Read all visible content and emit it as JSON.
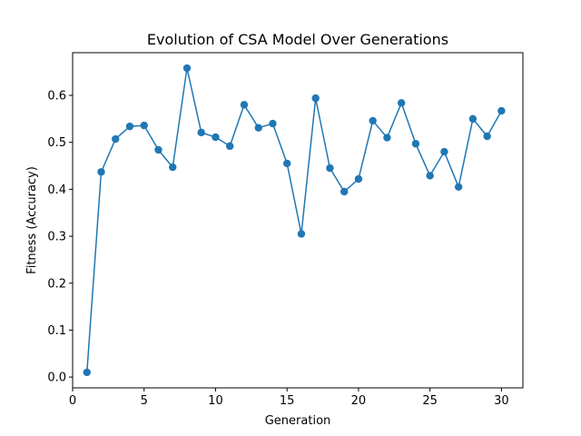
{
  "chart_data": {
    "type": "line",
    "title": "Evolution of CSA Model Over Generations",
    "xlabel": "Generation",
    "ylabel": "Fitness (Accuracy)",
    "xlim": [
      0,
      31.5
    ],
    "ylim": [
      -0.023,
      0.691
    ],
    "x_ticks": [
      0,
      5,
      10,
      15,
      20,
      25,
      30
    ],
    "y_ticks": [
      0.0,
      0.1,
      0.2,
      0.3,
      0.4,
      0.5,
      0.6
    ],
    "grid": false,
    "series": [
      {
        "color": "#1f77b4",
        "marker": "circle",
        "x": [
          1,
          2,
          3,
          4,
          5,
          6,
          7,
          8,
          9,
          10,
          11,
          12,
          13,
          14,
          15,
          16,
          17,
          18,
          19,
          20,
          21,
          22,
          23,
          24,
          25,
          26,
          27,
          28,
          29,
          30
        ],
        "y": [
          0.01,
          0.437,
          0.507,
          0.534,
          0.536,
          0.484,
          0.447,
          0.658,
          0.521,
          0.511,
          0.492,
          0.58,
          0.531,
          0.54,
          0.455,
          0.305,
          0.594,
          0.445,
          0.395,
          0.422,
          0.546,
          0.51,
          0.584,
          0.497,
          0.429,
          0.48,
          0.405,
          0.55,
          0.513,
          0.567
        ]
      }
    ]
  }
}
